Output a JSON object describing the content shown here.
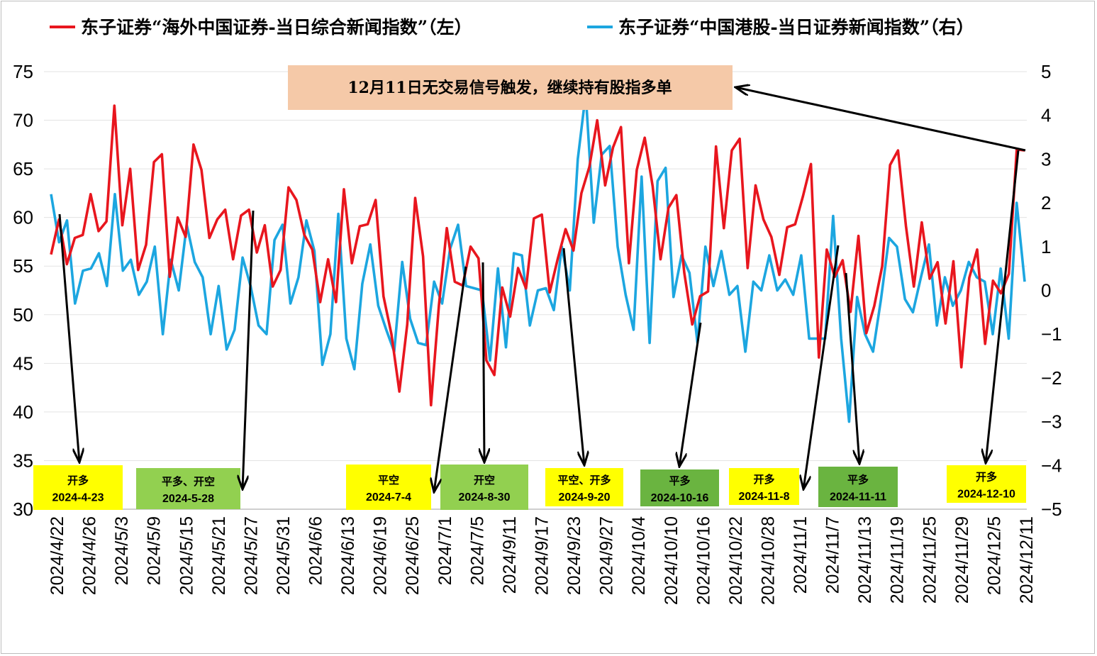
{
  "legend": {
    "series1": "东子证券“海外中国证券-当日综合新闻指数”（左）",
    "series2": "东子证券“中国港股-当日证券新闻指数”（右）"
  },
  "colors": {
    "series1": "#e8161e",
    "series2": "#1ca6e0",
    "note_bg": "#f5c9a8",
    "yellow": "#ffff00",
    "green_light": "#92d050",
    "green_dark": "#6ab440"
  },
  "note": "12月11日无交易信号触发，继续持有股指多单",
  "chart_data": {
    "type": "line",
    "x_tick_labels": [
      "2024/4/22",
      "2024/4/26",
      "2024/5/3",
      "2024/5/9",
      "2024/5/15",
      "2024/5/21",
      "2024/5/27",
      "2024/5/31",
      "2024/6/6",
      "2024/6/13",
      "2024/6/19",
      "2024/6/25",
      "2024/7/1",
      "2024/7/5",
      "2024/9/11",
      "2024/9/17",
      "2024/9/23",
      "2024/9/27",
      "2024/10/4",
      "2024/10/10",
      "2024/10/16",
      "2024/10/22",
      "2024/10/28",
      "2024/11/1",
      "2024/11/7",
      "2024/11/13",
      "2024/11/19",
      "2024/11/25",
      "2024/11/29",
      "2024/12/5",
      "2024/12/11"
    ],
    "y_left": {
      "min": 30,
      "max": 75,
      "step": 5
    },
    "y_right": {
      "min": -5,
      "max": 5,
      "step": 1
    },
    "grid": true,
    "legend_position": "top",
    "series": [
      {
        "name": "东子证券“海外中国证券-当日综合新闻指数”（左）",
        "axis": "left",
        "values": [
          56.2,
          59.8,
          55.2,
          57.9,
          58.2,
          62.4,
          58.6,
          59.6,
          71.5,
          59.2,
          65.0,
          54.6,
          57.2,
          65.7,
          66.5,
          53.9,
          60.0,
          58.0,
          67.5,
          64.9,
          57.9,
          59.8,
          60.8,
          55.7,
          60.2,
          60.8,
          56.4,
          59.2,
          52.9,
          54.6,
          63.1,
          61.8,
          58.2,
          56.7,
          51.3,
          55.7,
          51.3,
          62.9,
          55.3,
          59.1,
          59.3,
          61.8,
          51.9,
          48.0,
          42.1,
          49.0,
          62.0,
          56.0,
          40.7,
          51.0,
          58.9,
          53.4,
          53.0,
          57.0,
          55.8,
          45.3,
          43.8,
          52.8,
          49.8,
          54.8,
          52.7,
          59.9,
          60.3,
          52.3,
          55.7,
          58.8,
          56.6,
          62.5,
          65.2,
          70.0,
          63.3,
          67.2,
          69.3,
          55.3,
          64.9,
          68.2,
          63.2,
          55.7,
          61.0,
          62.3,
          54.3,
          49.0,
          51.9,
          52.4,
          67.3,
          58.9,
          66.9,
          68.1,
          54.8,
          63.3,
          59.8,
          58.0,
          54.1,
          59.0,
          59.3,
          62.2,
          65.5,
          45.6,
          56.7,
          53.9,
          55.6,
          50.3,
          58.1,
          48.1,
          50.9,
          55.0,
          65.4,
          66.9,
          59.1,
          52.9,
          59.5,
          53.7,
          55.4,
          49.1,
          55.5,
          44.6,
          53.8,
          56.7,
          47.0,
          53.5,
          52.2,
          54.2,
          67.0,
          66.9
        ]
      },
      {
        "name": "东子证券“中国港股-当日证券新闻指数”（右）",
        "axis": "right",
        "values": [
          2.2,
          1.1,
          1.6,
          -0.3,
          0.45,
          0.5,
          0.85,
          0.1,
          2.2,
          0.45,
          0.7,
          -0.1,
          0.2,
          1.0,
          -1.0,
          0.7,
          0.0,
          1.5,
          0.65,
          0.3,
          -1.0,
          0.1,
          -1.35,
          -0.9,
          0.75,
          0.1,
          -0.8,
          -1.0,
          1.15,
          1.5,
          -0.3,
          0.3,
          1.6,
          0.9,
          -1.7,
          -1.0,
          1.75,
          -1.1,
          -1.8,
          0.15,
          1.05,
          -0.35,
          -0.9,
          -1.4,
          0.65,
          -0.65,
          -1.2,
          -1.25,
          0.2,
          -0.3,
          0.95,
          1.5,
          0.1,
          0.05,
          0.0,
          -1.6,
          0.5,
          -1.3,
          0.85,
          0.8,
          -0.8,
          0.0,
          0.05,
          -0.45,
          1.0,
          0.0,
          3.0,
          4.5,
          1.55,
          3.1,
          3.3,
          1.0,
          -0.1,
          -0.9,
          2.6,
          -1.2,
          2.5,
          2.8,
          -0.15,
          0.8,
          0.4,
          -1.2,
          1.0,
          0.1,
          0.9,
          -0.1,
          0.1,
          -1.4,
          0.2,
          0.0,
          0.8,
          0.0,
          0.25,
          -0.1,
          0.8,
          -1.1,
          -1.1,
          -1.1,
          1.7,
          -1.1,
          -3.0,
          -0.15,
          -1.0,
          -1.4,
          -0.2,
          1.2,
          1.0,
          -0.2,
          -0.5,
          0.3,
          1.05,
          -0.8,
          0.3,
          -0.35,
          0.0,
          0.65,
          0.3,
          0.2,
          -1.0,
          0.5,
          -1.1,
          2.0,
          0.2
        ]
      }
    ],
    "annotations": [
      {
        "action": "开多",
        "date": "2024-4-23",
        "style": "yellow"
      },
      {
        "action": "平多、开空",
        "date": "2024-5-28",
        "style": "green_light"
      },
      {
        "action": "平空",
        "date": "2024-7-4",
        "style": "yellow"
      },
      {
        "action": "开空",
        "date": "2024-8-30",
        "style": "green_light"
      },
      {
        "action": "平空、开多",
        "date": "2024-9-20",
        "style": "yellow"
      },
      {
        "action": "平多",
        "date": "2024-10-16",
        "style": "green_dark"
      },
      {
        "action": "开多",
        "date": "2024-11-8",
        "style": "yellow"
      },
      {
        "action": "平多",
        "date": "2024-11-11",
        "style": "green_dark"
      },
      {
        "action": "开多",
        "date": "2024-12-10",
        "style": "yellow"
      }
    ]
  }
}
